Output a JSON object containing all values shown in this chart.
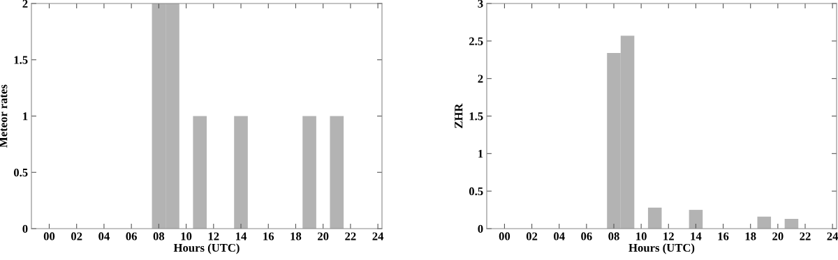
{
  "chart_data": [
    {
      "type": "bar",
      "xlabel": "Hours (UTC)",
      "ylabel": "Meteor rates",
      "x": [
        8,
        9,
        11,
        14,
        19,
        21
      ],
      "values": [
        2,
        2,
        1,
        1,
        1,
        1
      ],
      "color": "#b3b3b3",
      "xlim": [
        -1.3,
        24.3
      ],
      "xticks": [
        {
          "value": 0,
          "label": "00"
        },
        {
          "value": 2,
          "label": "02"
        },
        {
          "value": 4,
          "label": "04"
        },
        {
          "value": 6,
          "label": "06"
        },
        {
          "value": 8,
          "label": "08"
        },
        10,
        12,
        14,
        16,
        18,
        20,
        22,
        24
      ],
      "ylim": [
        0,
        2
      ],
      "yticks": [
        0,
        0.5,
        1,
        1.5,
        2
      ],
      "grid": false,
      "legend": false
    },
    {
      "type": "bar",
      "xlabel": "Hours (UTC)",
      "ylabel": "ZHR",
      "x": [
        8,
        9,
        11,
        14,
        19,
        21
      ],
      "values": [
        2.34,
        2.57,
        0.28,
        0.25,
        0.16,
        0.13
      ],
      "color": "#b3b3b3",
      "xlim": [
        -1.3,
        24.3
      ],
      "xticks": [
        {
          "value": 0,
          "label": "00"
        },
        {
          "value": 2,
          "label": "02"
        },
        {
          "value": 4,
          "label": "04"
        },
        {
          "value": 6,
          "label": "06"
        },
        {
          "value": 8,
          "label": "08"
        },
        10,
        12,
        14,
        16,
        18,
        20,
        22,
        24
      ],
      "ylim": [
        0,
        3
      ],
      "yticks": [
        0,
        0.5,
        1,
        1.5,
        2,
        2.5,
        3
      ],
      "grid": false,
      "legend": false
    }
  ]
}
